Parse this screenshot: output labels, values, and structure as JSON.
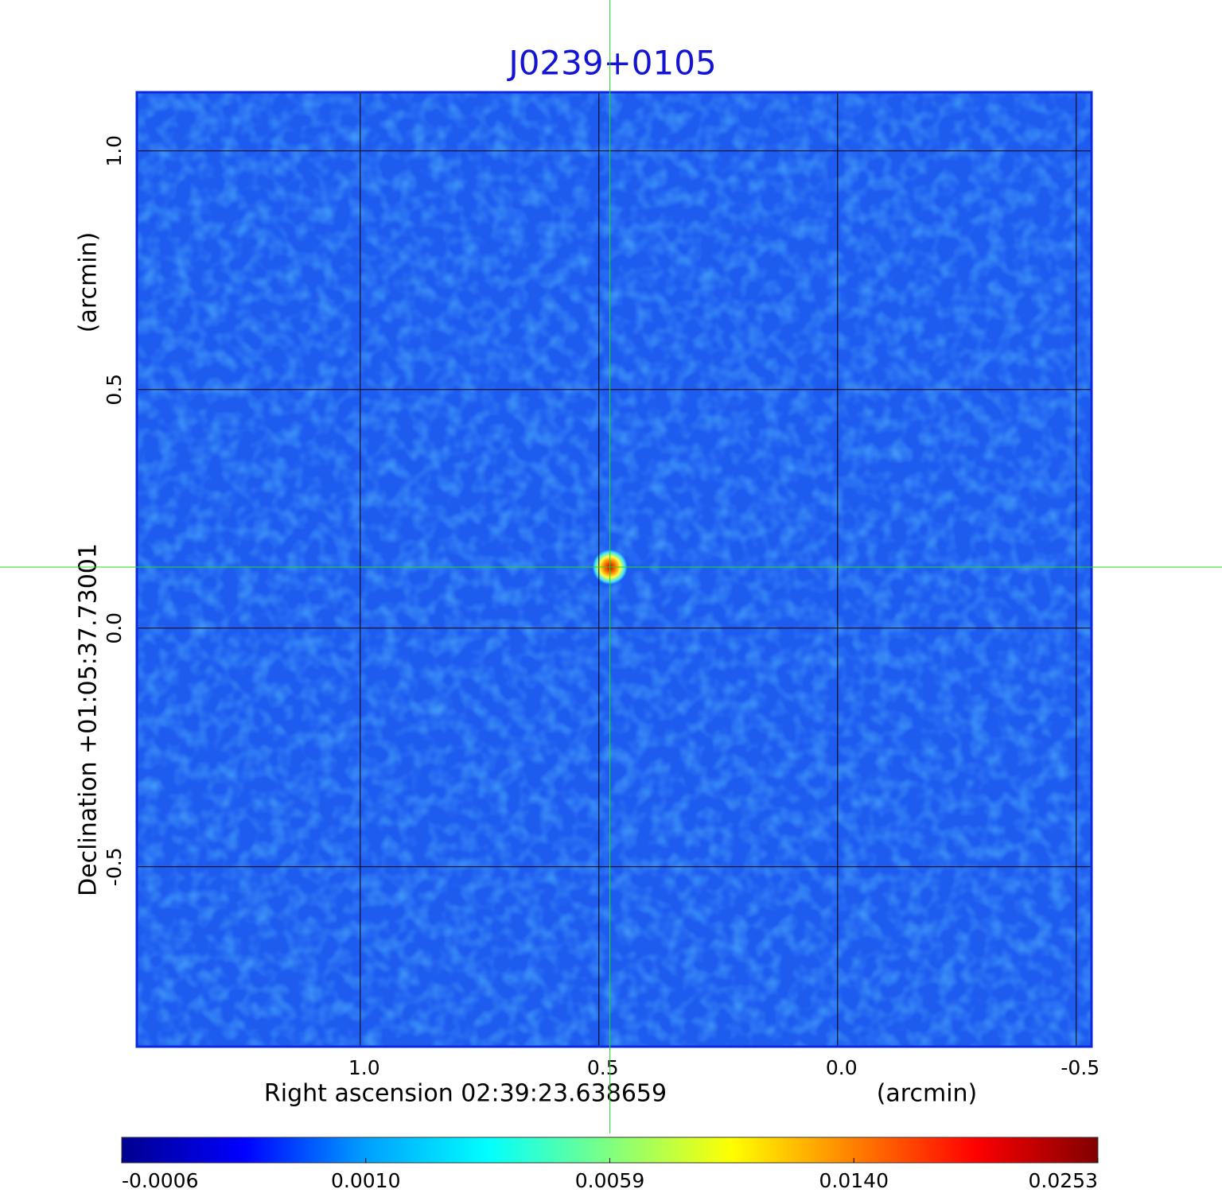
{
  "chart_data": {
    "type": "image",
    "title": "J0239+0105",
    "xlabel": "Right ascension  02:39:23.638659",
    "xunit": "(arcmin)",
    "ylabel": "Declination  +01:05:37.73001",
    "yunit": "(arcmin)",
    "xlim": [
      1.468,
      -0.532
    ],
    "ylim": [
      -0.877,
      1.123
    ],
    "xticks": [
      {
        "value": 1,
        "label": "1.0"
      },
      {
        "value": 0.5,
        "label": "0.5"
      },
      {
        "value": 0,
        "label": "0.0"
      },
      {
        "value": -0.5,
        "label": "-0.5"
      }
    ],
    "yticks": [
      {
        "value": -0.5,
        "label": "-0.5"
      },
      {
        "value": 0,
        "label": "0.0"
      },
      {
        "value": 0.5,
        "label": "0.5"
      },
      {
        "value": 1,
        "label": "1.0"
      }
    ],
    "grid": true,
    "color": "#1e5cf0",
    "crosshair": {
      "x": 0.477,
      "y": 0.128
    },
    "colorbar": {
      "colormap": [
        "#00008f",
        "#0000ff",
        "#00a0ff",
        "#00ffff",
        "#80ff80",
        "#ffff00",
        "#ff8000",
        "#ff0000",
        "#800000"
      ],
      "ticks": [
        -0.0006,
        {
          "value": 0.001,
          "label": "0.0010"
        },
        0.0059,
        {
          "value": 0.014,
          "label": "0.0140"
        },
        0.0253
      ]
    }
  }
}
